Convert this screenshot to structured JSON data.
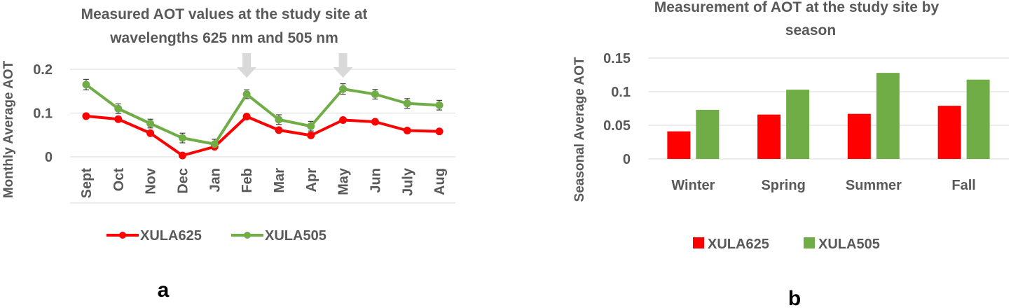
{
  "colors": {
    "red": "#ff0000",
    "green": "#70ad47",
    "grid": "#d9d9d9",
    "text": "#595959",
    "arrow": "#d9d9d9",
    "errorbar": "#404040"
  },
  "panels": {
    "a": "a",
    "b": "b"
  },
  "chart_data": [
    {
      "type": "line",
      "title_lines": [
        "Measured AOT values at the study site at",
        "wavelengths 625 nm and 505 nm"
      ],
      "xlabel": "",
      "ylabel": "Monthly Average AOT",
      "categories": [
        "Sept",
        "Oct",
        "Nov",
        "Dec",
        "Jan",
        "Feb",
        "Mar",
        "Apr",
        "May",
        "Jun",
        "July",
        "Aug"
      ],
      "yticks": [
        "0",
        "0.1",
        "0.2"
      ],
      "ylim": [
        0,
        0.2
      ],
      "grid": true,
      "legend_position": "bottom",
      "series": [
        {
          "name": "XULA625",
          "color": "#ff0000",
          "values": [
            0.093,
            0.086,
            0.054,
            0.003,
            0.023,
            0.092,
            0.061,
            0.049,
            0.084,
            0.08,
            0.06,
            0.058
          ],
          "errors": [
            0,
            0,
            0,
            0,
            0,
            0,
            0,
            0,
            0,
            0,
            0,
            0
          ]
        },
        {
          "name": "XULA505",
          "color": "#70ad47",
          "values": [
            0.165,
            0.11,
            0.076,
            0.043,
            0.029,
            0.143,
            0.085,
            0.07,
            0.155,
            0.143,
            0.122,
            0.118
          ],
          "errors": [
            0.012,
            0.011,
            0.01,
            0.011,
            0.011,
            0.01,
            0.011,
            0.011,
            0.012,
            0.011,
            0.011,
            0.011
          ]
        }
      ],
      "arrows_at": [
        "Feb",
        "May"
      ]
    },
    {
      "type": "bar",
      "title_lines": [
        "Measurement of AOT at the study site by",
        "season"
      ],
      "xlabel": "",
      "ylabel": "Seasonal Average AOT",
      "categories": [
        "Winter",
        "Spring",
        "Summer",
        "Fall"
      ],
      "yticks": [
        "0",
        "0.05",
        "0.1",
        "0.15"
      ],
      "ylim": [
        0,
        0.15
      ],
      "grid": true,
      "legend_position": "bottom",
      "series": [
        {
          "name": "XULA625",
          "color": "#ff0000",
          "values": [
            0.041,
            0.066,
            0.067,
            0.079
          ]
        },
        {
          "name": "XULA505",
          "color": "#70ad47",
          "values": [
            0.073,
            0.103,
            0.128,
            0.118
          ]
        }
      ]
    }
  ]
}
